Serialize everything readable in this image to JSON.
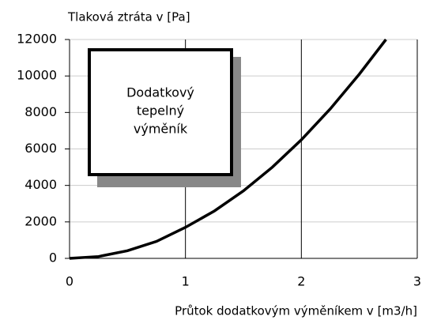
{
  "chart_data": {
    "type": "line",
    "title": "Tlaková ztráta v [Pa]",
    "x_label": "Průtok dodatkovým výměníkem v [m3/h]",
    "annotation": [
      "Dodatkový",
      "tepelný",
      "výměník"
    ],
    "x": [
      0,
      0.25,
      0.5,
      0.75,
      1,
      1.25,
      1.5,
      1.75,
      2,
      2.25,
      2.5,
      2.73
    ],
    "series": [
      {
        "name": "Tlaková ztráta",
        "color": "#000000",
        "values": [
          0,
          100,
          420,
          930,
          1700,
          2600,
          3700,
          5000,
          6500,
          8200,
          10100,
          12000
        ]
      }
    ],
    "xlim": [
      0,
      3
    ],
    "xticks": [
      0,
      1,
      2,
      3
    ],
    "ylim": [
      0,
      12000
    ],
    "yticks": [
      0,
      2000,
      4000,
      6000,
      8000,
      10000,
      12000
    ],
    "grid": true
  }
}
